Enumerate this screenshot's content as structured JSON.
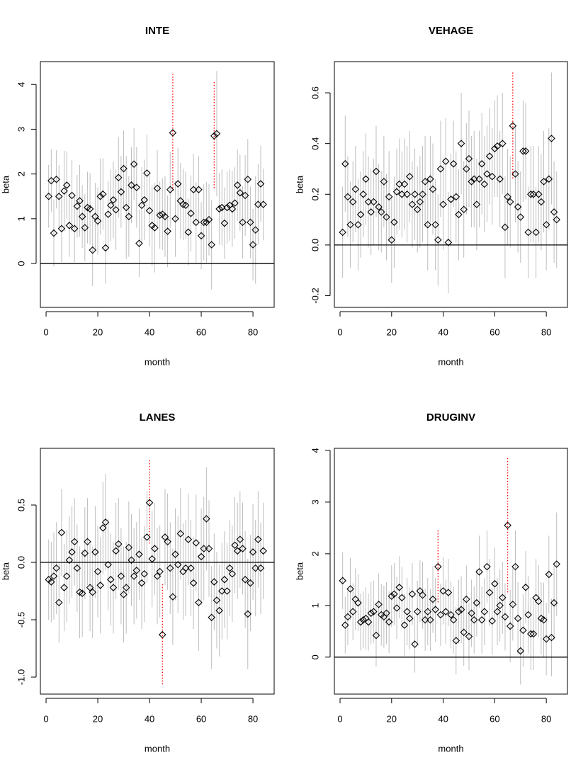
{
  "chart_data": [
    {
      "type": "errorbar",
      "title": "INTE",
      "xlabel": "month",
      "ylabel": "beta",
      "xlim": [
        -2.2,
        88.2
      ],
      "ylim": [
        -0.98,
        4.51
      ],
      "xticks": [
        0,
        20,
        40,
        60,
        80
      ],
      "yticks": [
        0,
        1,
        2,
        3,
        4
      ],
      "hline": 0,
      "marker_color": "#000000",
      "error_color": "#bebebe",
      "highlight_color": "#ff0000",
      "highlight_x": [
        49,
        65
      ],
      "x": [
        1,
        2,
        3,
        4,
        5,
        6,
        7,
        8,
        9,
        10,
        11,
        12,
        13,
        14,
        15,
        16,
        17,
        18,
        19,
        20,
        21,
        22,
        23,
        24,
        25,
        26,
        27,
        28,
        29,
        30,
        31,
        32,
        33,
        34,
        35,
        36,
        37,
        38,
        39,
        40,
        41,
        42,
        43,
        44,
        45,
        46,
        47,
        48,
        49,
        50,
        51,
        52,
        53,
        54,
        55,
        56,
        57,
        58,
        59,
        60,
        61,
        62,
        63,
        64,
        65,
        66,
        67,
        68,
        69,
        70,
        71,
        72,
        73,
        74,
        75,
        76,
        77,
        78,
        79,
        80,
        81,
        82,
        83,
        84
      ],
      "values": [
        1.5,
        1.85,
        0.68,
        1.88,
        1.5,
        0.78,
        1.62,
        1.75,
        0.85,
        1.52,
        0.78,
        1.28,
        1.4,
        1.05,
        0.8,
        1.25,
        1.22,
        0.3,
        1.05,
        0.95,
        1.5,
        1.55,
        0.35,
        1.1,
        1.3,
        1.42,
        1.2,
        1.92,
        1.6,
        2.12,
        1.25,
        1.05,
        1.75,
        2.22,
        1.7,
        0.45,
        1.3,
        1.42,
        2.02,
        1.18,
        0.85,
        0.8,
        1.68,
        1.08,
        1.1,
        1.05,
        0.72,
        1.65,
        2.92,
        1.0,
        1.78,
        1.4,
        1.32,
        1.3,
        0.7,
        1.12,
        1.65,
        0.92,
        1.65,
        0.62,
        0.92,
        0.92,
        0.98,
        0.42,
        2.85,
        2.9,
        1.22,
        1.25,
        0.9,
        1.25,
        1.3,
        1.22,
        1.35,
        1.75,
        1.58,
        0.92,
        1.52,
        1.88,
        0.92,
        0.42,
        0.75,
        1.32,
        1.78,
        1.32
      ],
      "errors": [
        0.7,
        0.7,
        0.75,
        0.65,
        0.7,
        0.75,
        0.9,
        0.75,
        0.7,
        0.8,
        0.75,
        0.7,
        0.8,
        0.7,
        0.75,
        0.8,
        0.8,
        0.8,
        0.75,
        0.75,
        0.85,
        0.8,
        0.8,
        0.75,
        0.8,
        0.85,
        0.9,
        0.9,
        0.8,
        0.85,
        1.15,
        0.9,
        0.85,
        0.8,
        0.9,
        0.75,
        0.85,
        0.9,
        0.85,
        0.8,
        0.9,
        1.0,
        0.85,
        0.75,
        0.8,
        0.9,
        0.8,
        0.85,
        1.32,
        0.85,
        0.8,
        0.85,
        0.8,
        0.75,
        0.75,
        0.85,
        0.8,
        0.9,
        0.75,
        0.75,
        0.85,
        0.9,
        0.8,
        1.0,
        1.2,
        1.4,
        0.8,
        0.85,
        0.8,
        0.8,
        0.8,
        0.85,
        0.8,
        0.8,
        0.85,
        0.8,
        0.9,
        0.9,
        0.8,
        0.8,
        1.2,
        0.9,
        0.85,
        0.8
      ]
    },
    {
      "type": "errorbar",
      "title": "VEHAGE",
      "xlabel": "month",
      "ylabel": "beta",
      "xlim": [
        -2.2,
        88.2
      ],
      "ylim": [
        -0.246,
        0.723
      ],
      "xticks": [
        0,
        20,
        40,
        60,
        80
      ],
      "yticks": [
        -0.2,
        {
          "value": 0,
          "label": "0.0"
        },
        0.2,
        0.4,
        0.6
      ],
      "hline": 0,
      "marker_color": "#000000",
      "error_color": "#bebebe",
      "highlight_color": "#ff0000",
      "highlight_x": [
        67
      ],
      "x": [
        1,
        2,
        3,
        4,
        5,
        6,
        7,
        8,
        9,
        10,
        11,
        12,
        13,
        14,
        15,
        16,
        17,
        18,
        19,
        20,
        21,
        22,
        23,
        24,
        25,
        26,
        27,
        28,
        29,
        30,
        31,
        32,
        33,
        34,
        35,
        36,
        37,
        38,
        39,
        40,
        41,
        42,
        43,
        44,
        45,
        46,
        47,
        48,
        49,
        50,
        51,
        52,
        53,
        54,
        55,
        56,
        57,
        58,
        59,
        60,
        61,
        62,
        63,
        64,
        65,
        66,
        67,
        68,
        69,
        70,
        71,
        72,
        73,
        74,
        75,
        76,
        77,
        78,
        79,
        80,
        81,
        82,
        83,
        84
      ],
      "values": [
        0.05,
        0.32,
        0.19,
        0.08,
        0.17,
        0.22,
        0.08,
        0.12,
        0.2,
        0.26,
        0.17,
        0.13,
        0.17,
        0.29,
        0.15,
        0.13,
        0.25,
        0.11,
        0.19,
        0.02,
        0.09,
        0.21,
        0.24,
        0.2,
        0.24,
        0.2,
        0.27,
        0.16,
        0.2,
        0.14,
        0.17,
        0.2,
        0.25,
        0.08,
        0.26,
        0.22,
        0.08,
        0.02,
        0.3,
        0.16,
        0.33,
        0.01,
        0.18,
        0.32,
        0.19,
        0.12,
        0.4,
        0.14,
        0.3,
        0.34,
        0.25,
        0.26,
        0.16,
        0.26,
        0.32,
        0.24,
        0.28,
        0.35,
        0.27,
        0.38,
        0.39,
        0.26,
        0.4,
        0.07,
        0.19,
        0.17,
        0.47,
        0.28,
        0.15,
        0.11,
        0.37,
        0.37,
        0.05,
        0.2,
        0.2,
        0.05,
        0.2,
        0.17,
        0.25,
        0.08,
        0.26,
        0.42,
        0.13,
        0.1
      ],
      "errors": [
        0.18,
        0.19,
        0.16,
        0.17,
        0.16,
        0.17,
        0.18,
        0.17,
        0.17,
        0.18,
        0.18,
        0.17,
        0.17,
        0.18,
        0.17,
        0.16,
        0.18,
        0.17,
        0.18,
        0.17,
        0.18,
        0.17,
        0.18,
        0.17,
        0.18,
        0.19,
        0.18,
        0.17,
        0.18,
        0.17,
        0.18,
        0.19,
        0.18,
        0.18,
        0.17,
        0.18,
        0.18,
        0.18,
        0.19,
        0.18,
        0.17,
        0.2,
        0.18,
        0.17,
        0.18,
        0.18,
        0.2,
        0.19,
        0.18,
        0.19,
        0.18,
        0.19,
        0.18,
        0.19,
        0.2,
        0.19,
        0.19,
        0.19,
        0.19,
        0.19,
        0.2,
        0.19,
        0.2,
        0.2,
        0.19,
        0.18,
        0.21,
        0.19,
        0.18,
        0.18,
        0.2,
        0.19,
        0.18,
        0.19,
        0.19,
        0.18,
        0.19,
        0.19,
        0.2,
        0.18,
        0.2,
        0.26,
        0.2,
        0.19
      ]
    },
    {
      "type": "errorbar",
      "title": "LANES",
      "xlabel": "month",
      "ylabel": "beta",
      "xlim": [
        -2.2,
        88.2
      ],
      "ylim": [
        -1.148,
        0.994
      ],
      "xticks": [
        0,
        20,
        40,
        60,
        80
      ],
      "yticks": [
        {
          "value": -1,
          "label": "-1.0"
        },
        -0.5,
        {
          "value": 0,
          "label": "0.0"
        },
        0.5
      ],
      "hline": 0,
      "marker_color": "#000000",
      "error_color": "#bebebe",
      "highlight_color": "#ff0000",
      "highlight_x": [
        40,
        45
      ],
      "x": [
        1,
        2,
        3,
        4,
        5,
        6,
        7,
        8,
        9,
        10,
        11,
        12,
        13,
        14,
        15,
        16,
        17,
        18,
        19,
        20,
        21,
        22,
        23,
        24,
        25,
        26,
        27,
        28,
        29,
        30,
        31,
        32,
        33,
        34,
        35,
        36,
        37,
        38,
        39,
        40,
        41,
        42,
        43,
        44,
        45,
        46,
        47,
        48,
        49,
        50,
        51,
        52,
        53,
        54,
        55,
        56,
        57,
        58,
        59,
        60,
        61,
        62,
        63,
        64,
        65,
        66,
        67,
        68,
        69,
        70,
        71,
        72,
        73,
        74,
        75,
        76,
        77,
        78,
        79,
        80,
        81,
        82,
        83,
        84
      ],
      "values": [
        -0.15,
        -0.17,
        -0.12,
        -0.05,
        -0.35,
        0.26,
        -0.22,
        -0.12,
        0.02,
        0.09,
        0.18,
        -0.05,
        -0.26,
        -0.27,
        0.08,
        0.18,
        -0.22,
        -0.26,
        0.09,
        -0.08,
        -0.2,
        0.3,
        0.35,
        -0.02,
        -0.15,
        -0.22,
        0.1,
        0.16,
        -0.12,
        -0.28,
        -0.22,
        0.13,
        0.02,
        -0.12,
        -0.07,
        0.07,
        -0.18,
        -0.1,
        0.22,
        0.52,
        0.03,
        0.12,
        -0.12,
        -0.08,
        -0.63,
        0.22,
        0.18,
        -0.05,
        -0.3,
        0.07,
        -0.02,
        0.25,
        -0.08,
        -0.05,
        0.2,
        -0.05,
        -0.18,
        0.17,
        -0.35,
        0.05,
        0.12,
        0.38,
        0.12,
        -0.48,
        -0.17,
        -0.33,
        -0.42,
        -0.25,
        -0.15,
        -0.25,
        -0.05,
        -0.1,
        0.15,
        0.1,
        0.2,
        0.12,
        -0.15,
        -0.45,
        -0.18,
        0.09,
        -0.05,
        0.2,
        -0.05,
        0.1
      ],
      "errors": [
        0.35,
        0.35,
        0.38,
        0.4,
        0.35,
        0.38,
        0.38,
        0.4,
        0.38,
        0.4,
        0.38,
        0.38,
        0.4,
        0.38,
        0.4,
        0.38,
        0.38,
        0.4,
        0.4,
        0.4,
        0.42,
        0.4,
        0.42,
        0.4,
        0.4,
        0.4,
        0.42,
        0.4,
        0.42,
        0.42,
        0.4,
        0.4,
        0.4,
        0.42,
        0.42,
        0.4,
        0.4,
        0.42,
        0.4,
        0.37,
        0.42,
        0.4,
        0.42,
        0.4,
        0.44,
        0.42,
        0.42,
        0.4,
        0.42,
        0.4,
        0.42,
        0.4,
        0.42,
        0.42,
        0.4,
        0.42,
        0.4,
        0.42,
        0.42,
        0.42,
        0.45,
        0.45,
        0.42,
        0.45,
        0.42,
        0.42,
        0.4,
        0.42,
        0.42,
        0.42,
        0.42,
        0.42,
        0.42,
        0.42,
        0.42,
        0.4,
        0.42,
        0.48,
        0.42,
        0.42,
        0.42,
        0.42,
        0.4,
        0.42
      ]
    },
    {
      "type": "errorbar",
      "title": "DRUGINV",
      "xlabel": "month",
      "ylabel": "beta",
      "xlim": [
        -2.2,
        88.2
      ],
      "ylim": [
        -0.715,
        4.04
      ],
      "xticks": [
        0,
        20,
        40,
        60,
        80
      ],
      "yticks": [
        0,
        1,
        2,
        3,
        4
      ],
      "hline": 0,
      "marker_color": "#000000",
      "error_color": "#bebebe",
      "highlight_color": "#ff0000",
      "highlight_x": [
        38,
        65
      ],
      "x": [
        1,
        2,
        3,
        4,
        5,
        6,
        7,
        8,
        9,
        10,
        11,
        12,
        13,
        14,
        15,
        16,
        17,
        18,
        19,
        20,
        21,
        22,
        23,
        24,
        25,
        26,
        27,
        28,
        29,
        30,
        31,
        32,
        33,
        34,
        35,
        36,
        37,
        38,
        39,
        40,
        41,
        42,
        43,
        44,
        45,
        46,
        47,
        48,
        49,
        50,
        51,
        52,
        53,
        54,
        55,
        56,
        57,
        58,
        59,
        60,
        61,
        62,
        63,
        64,
        65,
        66,
        67,
        68,
        69,
        70,
        71,
        72,
        73,
        74,
        75,
        76,
        77,
        78,
        79,
        80,
        81,
        82,
        83,
        84
      ],
      "values": [
        1.48,
        0.62,
        0.78,
        1.32,
        0.88,
        1.12,
        1.05,
        0.68,
        0.72,
        0.75,
        0.68,
        0.85,
        0.88,
        0.42,
        1.02,
        0.82,
        0.78,
        0.85,
        0.68,
        1.18,
        1.22,
        0.95,
        1.35,
        1.15,
        0.62,
        0.88,
        0.75,
        1.22,
        0.25,
        0.88,
        1.28,
        1.2,
        0.72,
        0.88,
        0.72,
        1.12,
        0.92,
        1.75,
        0.82,
        1.28,
        0.88,
        1.25,
        0.82,
        0.72,
        0.32,
        0.88,
        0.92,
        0.48,
        1.12,
        0.4,
        0.85,
        0.72,
        1.05,
        1.65,
        0.72,
        0.88,
        1.75,
        1.25,
        0.7,
        1.42,
        0.88,
        1.0,
        1.15,
        0.78,
        2.55,
        0.6,
        1.02,
        1.75,
        0.75,
        0.12,
        0.52,
        1.35,
        0.82,
        0.45,
        0.45,
        1.15,
        1.08,
        0.75,
        0.72,
        0.35,
        1.6,
        0.38,
        1.05,
        1.8
      ],
      "errors": [
        0.55,
        0.55,
        0.55,
        0.6,
        0.55,
        0.6,
        0.55,
        0.55,
        0.55,
        0.6,
        0.55,
        0.6,
        0.6,
        0.6,
        0.6,
        0.6,
        0.6,
        0.6,
        0.6,
        0.6,
        0.6,
        0.6,
        0.6,
        0.6,
        0.6,
        0.65,
        0.6,
        0.6,
        0.55,
        0.6,
        0.6,
        0.65,
        0.6,
        0.65,
        0.6,
        0.65,
        0.62,
        0.7,
        0.6,
        0.65,
        0.62,
        0.65,
        0.65,
        0.65,
        0.65,
        0.62,
        0.65,
        0.65,
        0.65,
        0.65,
        0.65,
        0.65,
        0.65,
        0.7,
        0.65,
        0.65,
        0.7,
        0.65,
        0.65,
        0.7,
        0.65,
        0.7,
        0.7,
        0.65,
        1.3,
        0.7,
        0.7,
        0.7,
        0.7,
        0.65,
        0.7,
        0.7,
        0.75,
        0.7,
        0.7,
        0.75,
        0.7,
        0.7,
        0.72,
        0.7,
        0.75,
        0.75,
        0.72,
        1.0
      ]
    }
  ]
}
